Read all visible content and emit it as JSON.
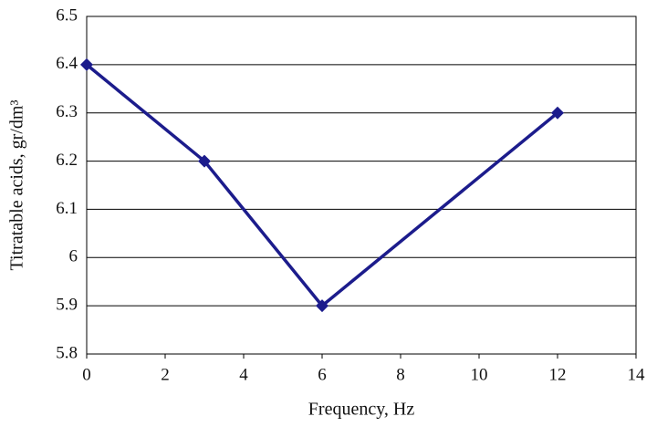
{
  "chart_data": {
    "type": "line",
    "x_label": "Frequency, Hz",
    "y_label": "Titratable acids, gr/dm³",
    "x": [
      0,
      3,
      6,
      12
    ],
    "values": [
      6.4,
      6.2,
      5.9,
      6.3
    ],
    "color": "#1c1c8c",
    "xlim": [
      0,
      14
    ],
    "xticks": [
      0,
      2,
      4,
      6,
      8,
      10,
      12,
      14
    ],
    "ylim": [
      5.8,
      6.5
    ],
    "yticks": [
      5.8,
      5.9,
      6,
      6.1,
      6.2,
      6.3,
      6.4,
      6.5
    ],
    "grid": true
  }
}
